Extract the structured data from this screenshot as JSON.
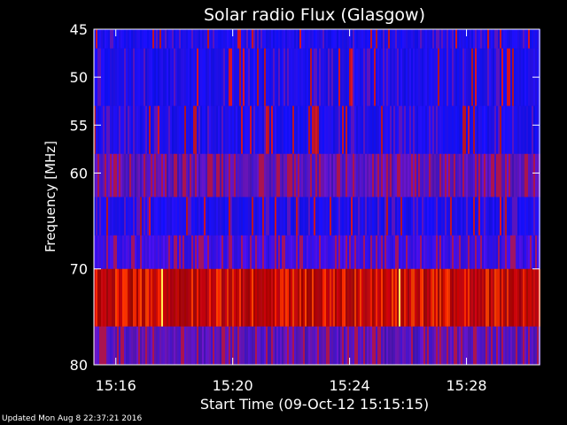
{
  "chart_data": {
    "type": "heatmap",
    "title": "Solar radio Flux (Glasgow)",
    "xlabel": "Start Time (09-Oct-12 15:15:15)",
    "ylabel": "Frequency [MHz]",
    "xlim": [
      "15:15:15",
      "15:30:30"
    ],
    "ylim": [
      45,
      80
    ],
    "x_ticks": [
      "15:16",
      "15:20",
      "15:24",
      "15:28"
    ],
    "y_ticks": [
      45,
      50,
      55,
      60,
      70,
      80
    ],
    "colormap": "blue-red-yellow",
    "bands": [
      {
        "from": 45,
        "to": 47,
        "level": "low"
      },
      {
        "from": 47,
        "to": 53,
        "level": "low"
      },
      {
        "from": 53,
        "to": 58,
        "level": "low"
      },
      {
        "from": 58,
        "to": 62.5,
        "level": "medium"
      },
      {
        "from": 62.5,
        "to": 66.5,
        "level": "low"
      },
      {
        "from": 66.5,
        "to": 70,
        "level": "low-medium"
      },
      {
        "from": 70,
        "to": 76,
        "level": "high"
      },
      {
        "from": 76,
        "to": 80,
        "level": "medium"
      }
    ],
    "colors": {
      "background": "#000000",
      "low": "#1010ff",
      "medium": "#4a1db4",
      "high": "#b80d00",
      "peak": "#ffee55"
    }
  },
  "footer": {
    "updated": "Updated Mon Aug  8 22:37:21 2016"
  }
}
